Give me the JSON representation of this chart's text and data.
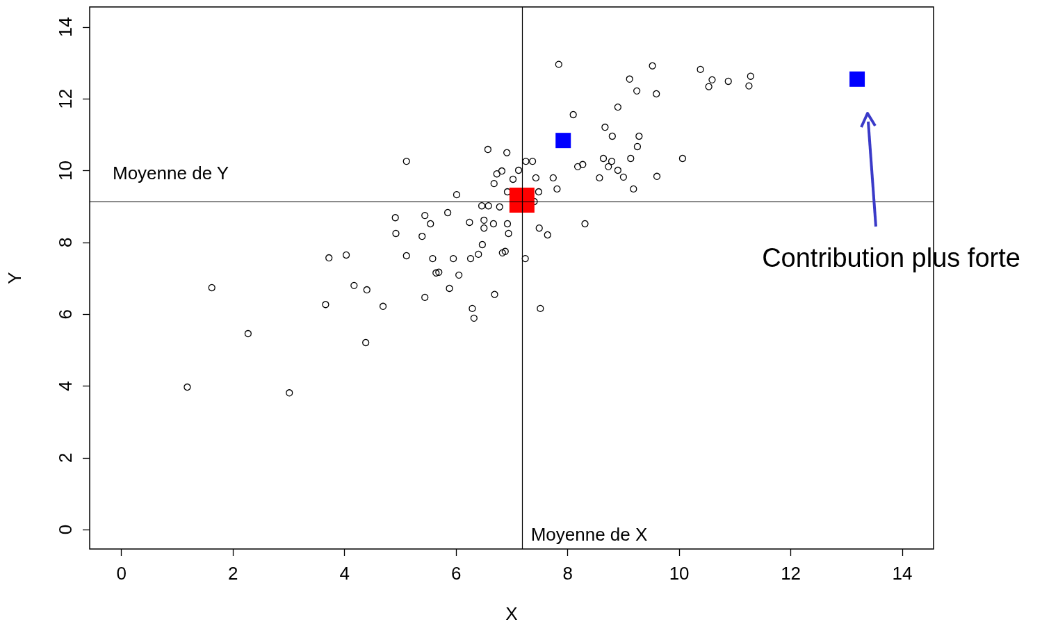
{
  "chart_data": {
    "type": "scatter",
    "xlabel": "X",
    "ylabel": "Y",
    "xlim": [
      -0.57,
      14.56
    ],
    "ylim": [
      -0.54,
      14.56
    ],
    "xticks": [
      0,
      2,
      4,
      6,
      8,
      10,
      12,
      14
    ],
    "yticks": [
      0,
      2,
      4,
      6,
      8,
      10,
      12,
      14
    ],
    "grid": false,
    "series": [
      {
        "color": "#000000",
        "marker": "circle",
        "x": [
          1.18,
          1.62,
          2.27,
          3.01,
          3.66,
          3.72,
          4.03,
          4.17,
          4.38,
          4.4,
          4.69,
          4.91,
          4.92,
          5.11,
          5.11,
          5.39,
          5.44,
          5.44,
          5.54,
          5.58,
          5.64,
          5.69,
          5.85,
          5.88,
          5.95,
          6.01,
          6.05,
          6.24,
          6.26,
          6.29,
          6.32,
          6.4,
          6.46,
          6.47,
          6.5,
          6.5,
          6.57,
          6.58,
          6.67,
          6.68,
          6.69,
          6.73,
          6.78,
          6.82,
          6.83,
          6.88,
          6.91,
          6.92,
          6.92,
          6.94,
          7.02,
          7.12,
          7.24,
          7.25,
          7.37,
          7.4,
          7.43,
          7.48,
          7.49,
          7.51,
          7.64,
          7.74,
          7.81,
          7.84,
          8.1,
          8.18,
          8.27,
          8.31,
          8.57,
          8.64,
          8.67,
          8.73,
          8.79,
          8.8,
          8.9,
          8.9,
          9.0,
          9.11,
          9.13,
          9.18,
          9.24,
          9.25,
          9.28,
          9.52,
          9.59,
          9.6,
          10.06,
          10.38,
          10.53,
          10.59,
          10.88,
          11.25,
          11.28
        ],
        "values": [
          3.97,
          6.74,
          5.46,
          3.81,
          6.27,
          7.57,
          7.65,
          6.8,
          5.21,
          6.68,
          6.22,
          8.69,
          8.25,
          10.26,
          7.63,
          8.17,
          8.75,
          6.47,
          8.52,
          7.55,
          7.15,
          7.17,
          8.83,
          6.72,
          7.55,
          9.33,
          7.09,
          8.56,
          7.55,
          6.16,
          5.89,
          7.67,
          9.02,
          7.94,
          8.62,
          8.4,
          10.59,
          9.02,
          8.52,
          9.64,
          6.55,
          9.91,
          8.99,
          9.99,
          7.71,
          7.75,
          10.5,
          9.41,
          8.52,
          8.25,
          9.76,
          10.01,
          7.55,
          10.26,
          10.26,
          9.14,
          9.8,
          9.41,
          8.4,
          6.16,
          8.21,
          9.8,
          9.49,
          12.96,
          11.56,
          10.11,
          10.17,
          8.52,
          9.8,
          10.34,
          11.21,
          10.11,
          10.26,
          10.96,
          11.77,
          10.01,
          9.82,
          12.55,
          10.34,
          9.49,
          12.22,
          10.67,
          10.96,
          12.92,
          12.14,
          9.84,
          10.34,
          12.82,
          12.34,
          12.53,
          12.49,
          12.36,
          12.63
        ]
      },
      {
        "color": "#ff0000",
        "marker": "square",
        "x": [
          7.18
        ],
        "values": [
          9.18
        ]
      },
      {
        "color": "#0000ff",
        "marker": "square",
        "x": [
          7.92,
          13.19
        ],
        "values": [
          10.84,
          12.55
        ]
      }
    ],
    "ref_lines": [
      {
        "axis": "x",
        "value": 7.19,
        "label": "Moyenne de X",
        "color": "#000000"
      },
      {
        "axis": "y",
        "value": 9.14,
        "label": "Moyenne de Y",
        "color": "#000000"
      }
    ],
    "annotations": [
      "Contribution plus forte"
    ]
  }
}
